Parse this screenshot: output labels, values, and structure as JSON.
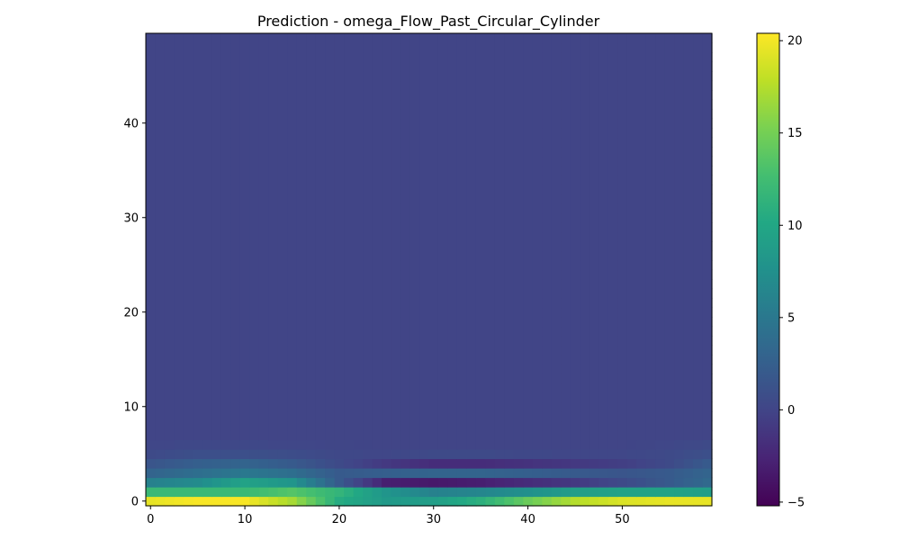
{
  "chart_data": {
    "type": "heatmap",
    "title": "Prediction - omega_Flow_Past_Circular_Cylinder",
    "xlabel": "",
    "ylabel": "",
    "x_range": [
      -0.5,
      59.5
    ],
    "y_range": [
      -0.5,
      49.5
    ],
    "x_ticks": [
      0,
      10,
      20,
      30,
      40,
      50
    ],
    "y_ticks": [
      0,
      10,
      20,
      30,
      40
    ],
    "colormap": "viridis",
    "colorbar": {
      "range": [
        -5.2,
        20.4
      ],
      "ticks": [
        -5,
        0,
        5,
        10,
        15,
        20
      ]
    },
    "grid": false,
    "shape": [
      50,
      60
    ],
    "background_value": 0.0,
    "profiles": {
      "columns": [
        0,
        5,
        10,
        15,
        20,
        25,
        30,
        35,
        40,
        45,
        50,
        55,
        59
      ],
      "rows": {
        "0": [
          19.5,
          20.2,
          20.2,
          17.0,
          10.5,
          8.5,
          9.0,
          11.0,
          14.5,
          17.5,
          19.0,
          19.5,
          19.5
        ],
        "1": [
          12.0,
          12.0,
          12.0,
          13.5,
          11.5,
          8.0,
          6.0,
          6.5,
          7.5,
          9.0,
          9.5,
          9.5,
          9.0
        ],
        "2": [
          6.0,
          7.0,
          9.5,
          8.0,
          2.0,
          -3.0,
          -3.5,
          -3.0,
          -2.0,
          -1.0,
          0.5,
          2.0,
          3.5
        ],
        "3": [
          3.0,
          4.0,
          5.0,
          4.0,
          2.0,
          2.5,
          3.0,
          3.0,
          2.5,
          2.0,
          1.5,
          2.0,
          3.0
        ],
        "4": [
          1.5,
          2.5,
          3.0,
          2.0,
          0.5,
          -1.0,
          -2.0,
          -2.0,
          -1.5,
          -1.0,
          -0.5,
          0.5,
          2.0
        ],
        "5": [
          0.5,
          1.0,
          1.0,
          0.8,
          0.3,
          0.2,
          0.5,
          0.5,
          0.3,
          0.2,
          0.2,
          0.5,
          1.0
        ],
        "6": [
          0.2,
          0.3,
          0.3,
          0.2,
          0.1,
          0.0,
          0.0,
          0.0,
          0.0,
          0.0,
          0.0,
          0.2,
          0.5
        ]
      }
    }
  }
}
